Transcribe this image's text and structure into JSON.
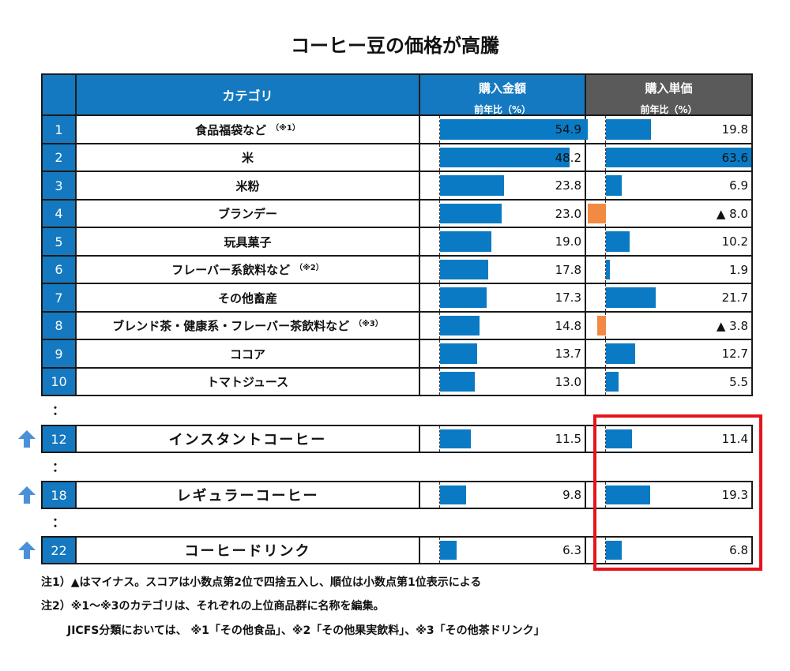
{
  "title": "コーヒー豆の価格が高騰",
  "header": {
    "category": "カテゴリ",
    "amount_title": "購入金額",
    "amount_sub": "前年比（%）",
    "price_title": "購入単価",
    "price_sub": "前年比（%）"
  },
  "colors": {
    "header_blue": "#1479c0",
    "header_gray": "#5a5a5a",
    "bar_blue": "#0a7ac4",
    "bar_orange": "#f28a44",
    "highlight_red": "#e5141a",
    "arrow_blue": "#4a90d9"
  },
  "chart_data": {
    "type": "bar",
    "title": "コーヒー豆の価格が高騰",
    "rows": [
      {
        "rank": "1",
        "category": "食品福袋など",
        "note": "（※1）",
        "amount": 54.9,
        "amount_label": "54.9",
        "price": 19.8,
        "price_label": "19.8"
      },
      {
        "rank": "2",
        "category": "米",
        "note": "",
        "amount": 48.2,
        "amount_label": "48.2",
        "price": 63.6,
        "price_label": "63.6"
      },
      {
        "rank": "3",
        "category": "米粉",
        "note": "",
        "amount": 23.8,
        "amount_label": "23.8",
        "price": 6.9,
        "price_label": "6.9"
      },
      {
        "rank": "4",
        "category": "ブランデー",
        "note": "",
        "amount": 23.0,
        "amount_label": "23.0",
        "price": -8.0,
        "price_label": "▲ 8.0"
      },
      {
        "rank": "5",
        "category": "玩具菓子",
        "note": "",
        "amount": 19.0,
        "amount_label": "19.0",
        "price": 10.2,
        "price_label": "10.2"
      },
      {
        "rank": "6",
        "category": "フレーバー系飲料など",
        "note": "（※2）",
        "amount": 17.8,
        "amount_label": "17.8",
        "price": 1.9,
        "price_label": "1.9"
      },
      {
        "rank": "7",
        "category": "その他畜産",
        "note": "",
        "amount": 17.3,
        "amount_label": "17.3",
        "price": 21.7,
        "price_label": "21.7"
      },
      {
        "rank": "8",
        "category": "ブレンド茶・健康系・フレーバー茶飲料など",
        "note": "（※3）",
        "amount": 14.8,
        "amount_label": "14.8",
        "price": -3.8,
        "price_label": "▲ 3.8"
      },
      {
        "rank": "9",
        "category": "ココア",
        "note": "",
        "amount": 13.7,
        "amount_label": "13.7",
        "price": 12.7,
        "price_label": "12.7"
      },
      {
        "rank": "10",
        "category": "トマトジュース",
        "note": "",
        "amount": 13.0,
        "amount_label": "13.0",
        "price": 5.5,
        "price_label": "5.5"
      }
    ],
    "featured": [
      {
        "rank": "12",
        "category": "インスタントコーヒー",
        "amount": 11.5,
        "amount_label": "11.5",
        "price": 11.4,
        "price_label": "11.4"
      },
      {
        "rank": "18",
        "category": "レギュラーコーヒー",
        "amount": 9.8,
        "amount_label": "9.8",
        "price": 19.3,
        "price_label": "19.3"
      },
      {
        "rank": "22",
        "category": "コーヒードリンク",
        "amount": 6.3,
        "amount_label": "6.3",
        "price": 6.8,
        "price_label": "6.8"
      }
    ],
    "ellipsis": "：",
    "negative_marker": "▲"
  },
  "notes": [
    "注1）▲はマイナス。スコアは小数点第2位で四捨五入し、順位は小数点第1位表示による",
    "注2）※1〜※3のカテゴリは、それぞれの上位商品群に名称を編集。",
    "JICFS分類においては、 ※1「その他食品」、※2「その他果実飲料」、※3「その他茶ドリンク」"
  ]
}
